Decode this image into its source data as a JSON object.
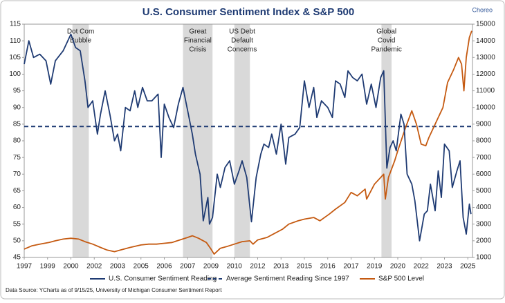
{
  "chart_data": {
    "type": "line",
    "title": "U.S. Consumer Sentiment Index & S&P 500",
    "brand": "Choreo",
    "source": "Data Source: YCharts as of 9/15/25, University of Michigan Consumer Sentiment Report",
    "xlim": [
      1997,
      2025.8
    ],
    "xticks": [
      {
        "value": 1997,
        "label": "1997"
      },
      {
        "value": 1998.5,
        "label": "1999"
      },
      {
        "value": 2000,
        "label": "2000"
      },
      {
        "value": 2001.5,
        "label": "2002"
      },
      {
        "value": 2003,
        "label": "2003"
      },
      {
        "value": 2004.5,
        "label": "2005"
      },
      {
        "value": 2006,
        "label": "2006"
      },
      {
        "value": 2007.5,
        "label": "2007"
      },
      {
        "value": 2009,
        "label": "2009"
      },
      {
        "value": 2010.5,
        "label": "2010"
      },
      {
        "value": 2012,
        "label": "2012"
      },
      {
        "value": 2013.5,
        "label": "2013"
      },
      {
        "value": 2015,
        "label": "2015"
      },
      {
        "value": 2016.5,
        "label": "2016"
      },
      {
        "value": 2018,
        "label": "2017"
      },
      {
        "value": 2019.5,
        "label": "2019"
      },
      {
        "value": 2021,
        "label": "2020"
      },
      {
        "value": 2022.5,
        "label": "2022"
      },
      {
        "value": 2024,
        "label": "2023"
      },
      {
        "value": 2025.5,
        "label": "2025"
      }
    ],
    "ylim": [
      45,
      115
    ],
    "yticks": [
      45,
      50,
      55,
      60,
      65,
      70,
      75,
      80,
      85,
      90,
      95,
      100,
      105,
      110,
      115
    ],
    "y2lim": [
      1000,
      15000
    ],
    "y2ticks": [
      1000,
      2000,
      3000,
      4000,
      5000,
      6000,
      7000,
      8000,
      9000,
      10000,
      11000,
      12000,
      13000,
      14000,
      15000
    ],
    "shaded_periods": [
      {
        "label": [
          "Dot Com",
          "Bubble"
        ],
        "start": 2000.1,
        "end": 2001.15
      },
      {
        "label": [
          "Great",
          "Financial",
          "Crisis"
        ],
        "start": 2007.2,
        "end": 2009.1
      },
      {
        "label": [
          "US Debt",
          "Default",
          "Concerns"
        ],
        "start": 2010.5,
        "end": 2011.5
      },
      {
        "label": [
          "Global",
          "Covid",
          "Pandemic"
        ],
        "start": 2019.95,
        "end": 2020.6
      }
    ],
    "average": {
      "name": "Average Sentiment Reading Since 1997",
      "value": 84.3,
      "color": "#1f3b73"
    },
    "series": [
      {
        "name": "U.S. Consumer Sentiment Reading",
        "color": "#1f3b73",
        "x": [
          1997.0,
          1997.3,
          1997.6,
          1998.0,
          1998.4,
          1998.7,
          1999.0,
          1999.5,
          2000.0,
          2000.3,
          2000.6,
          2000.9,
          2001.1,
          2001.4,
          2001.7,
          2001.9,
          2002.2,
          2002.5,
          2002.8,
          2003.0,
          2003.2,
          2003.5,
          2003.8,
          2004.1,
          2004.3,
          2004.6,
          2004.9,
          2005.2,
          2005.6,
          2005.8,
          2006.0,
          2006.3,
          2006.6,
          2006.9,
          2007.2,
          2007.5,
          2007.8,
          2008.0,
          2008.3,
          2008.5,
          2008.8,
          2008.9,
          2009.1,
          2009.4,
          2009.6,
          2009.9,
          2010.2,
          2010.5,
          2010.8,
          2011.0,
          2011.3,
          2011.6,
          2011.9,
          2012.2,
          2012.4,
          2012.7,
          2012.9,
          2013.2,
          2013.5,
          2013.8,
          2014.0,
          2014.4,
          2014.7,
          2015.0,
          2015.3,
          2015.6,
          2015.8,
          2016.1,
          2016.5,
          2016.8,
          2017.0,
          2017.3,
          2017.6,
          2017.8,
          2018.1,
          2018.4,
          2018.7,
          2019.0,
          2019.3,
          2019.6,
          2019.9,
          2020.1,
          2020.3,
          2020.5,
          2020.7,
          2020.9,
          2021.2,
          2021.4,
          2021.6,
          2021.9,
          2022.1,
          2022.4,
          2022.7,
          2022.9,
          2023.1,
          2023.4,
          2023.6,
          2023.8,
          2024.0,
          2024.3,
          2024.5,
          2024.8,
          2025.0,
          2025.2,
          2025.4,
          2025.6,
          2025.7
        ],
        "values": [
          103,
          110,
          105,
          106,
          104,
          97,
          104,
          107,
          112,
          108,
          107,
          98,
          90,
          92,
          82,
          88,
          95,
          88,
          80,
          82,
          77,
          90,
          89,
          95,
          90,
          96,
          92,
          92,
          94,
          75,
          91,
          87,
          84,
          91,
          96,
          89,
          82,
          76,
          70,
          56,
          63,
          55,
          57,
          70,
          66,
          72,
          74,
          67,
          71,
          74,
          69,
          55.7,
          69,
          76,
          79,
          78,
          82,
          76,
          85,
          73,
          81,
          82,
          84,
          98,
          90,
          96,
          87,
          92,
          90,
          87,
          98,
          97,
          93,
          101,
          99,
          98,
          100,
          91,
          97,
          90,
          99,
          101,
          71.8,
          78,
          80,
          77,
          88,
          85,
          70,
          67,
          62,
          50,
          58,
          59,
          67,
          59,
          71,
          63,
          79,
          77,
          66,
          71,
          74,
          57,
          52,
          61,
          58
        ]
      },
      {
        "name": "S&P 500 Level",
        "color": "#c55a11",
        "axis": "y2",
        "x": [
          1997.0,
          1997.5,
          1998.0,
          1998.6,
          1999.0,
          1999.5,
          2000.0,
          2000.5,
          2000.9,
          2001.4,
          2001.9,
          2002.3,
          2002.8,
          2003.2,
          2003.8,
          2004.5,
          2005.0,
          2005.5,
          2006.0,
          2006.5,
          2007.0,
          2007.5,
          2007.8,
          2008.2,
          2008.7,
          2009.0,
          2009.2,
          2009.6,
          2010.0,
          2010.5,
          2011.0,
          2011.5,
          2011.7,
          2012.0,
          2012.6,
          2013.0,
          2013.6,
          2014.0,
          2014.6,
          2015.0,
          2015.6,
          2016.0,
          2016.6,
          2017.0,
          2017.6,
          2018.0,
          2018.4,
          2018.9,
          2019.0,
          2019.5,
          2019.9,
          2020.1,
          2020.2,
          2020.4,
          2020.8,
          2021.0,
          2021.5,
          2021.9,
          2022.2,
          2022.5,
          2022.8,
          2023.0,
          2023.5,
          2023.9,
          2024.2,
          2024.6,
          2024.9,
          2025.1,
          2025.25,
          2025.4,
          2025.6,
          2025.75
        ],
        "values": [
          1500,
          1700,
          1800,
          1900,
          2000,
          2100,
          2150,
          2100,
          1950,
          1800,
          1600,
          1450,
          1350,
          1450,
          1600,
          1750,
          1800,
          1800,
          1850,
          1900,
          2050,
          2200,
          2300,
          2150,
          1900,
          1500,
          1200,
          1550,
          1650,
          1800,
          1950,
          2000,
          1800,
          2050,
          2200,
          2400,
          2700,
          3000,
          3200,
          3300,
          3400,
          3200,
          3600,
          3900,
          4300,
          4900,
          4700,
          5100,
          4500,
          5400,
          5800,
          6000,
          4500,
          5800,
          6800,
          7400,
          8800,
          9800,
          9000,
          7800,
          7700,
          8200,
          9200,
          10000,
          11500,
          12300,
          13000,
          12600,
          11000,
          13000,
          14200,
          14600
        ]
      }
    ]
  }
}
